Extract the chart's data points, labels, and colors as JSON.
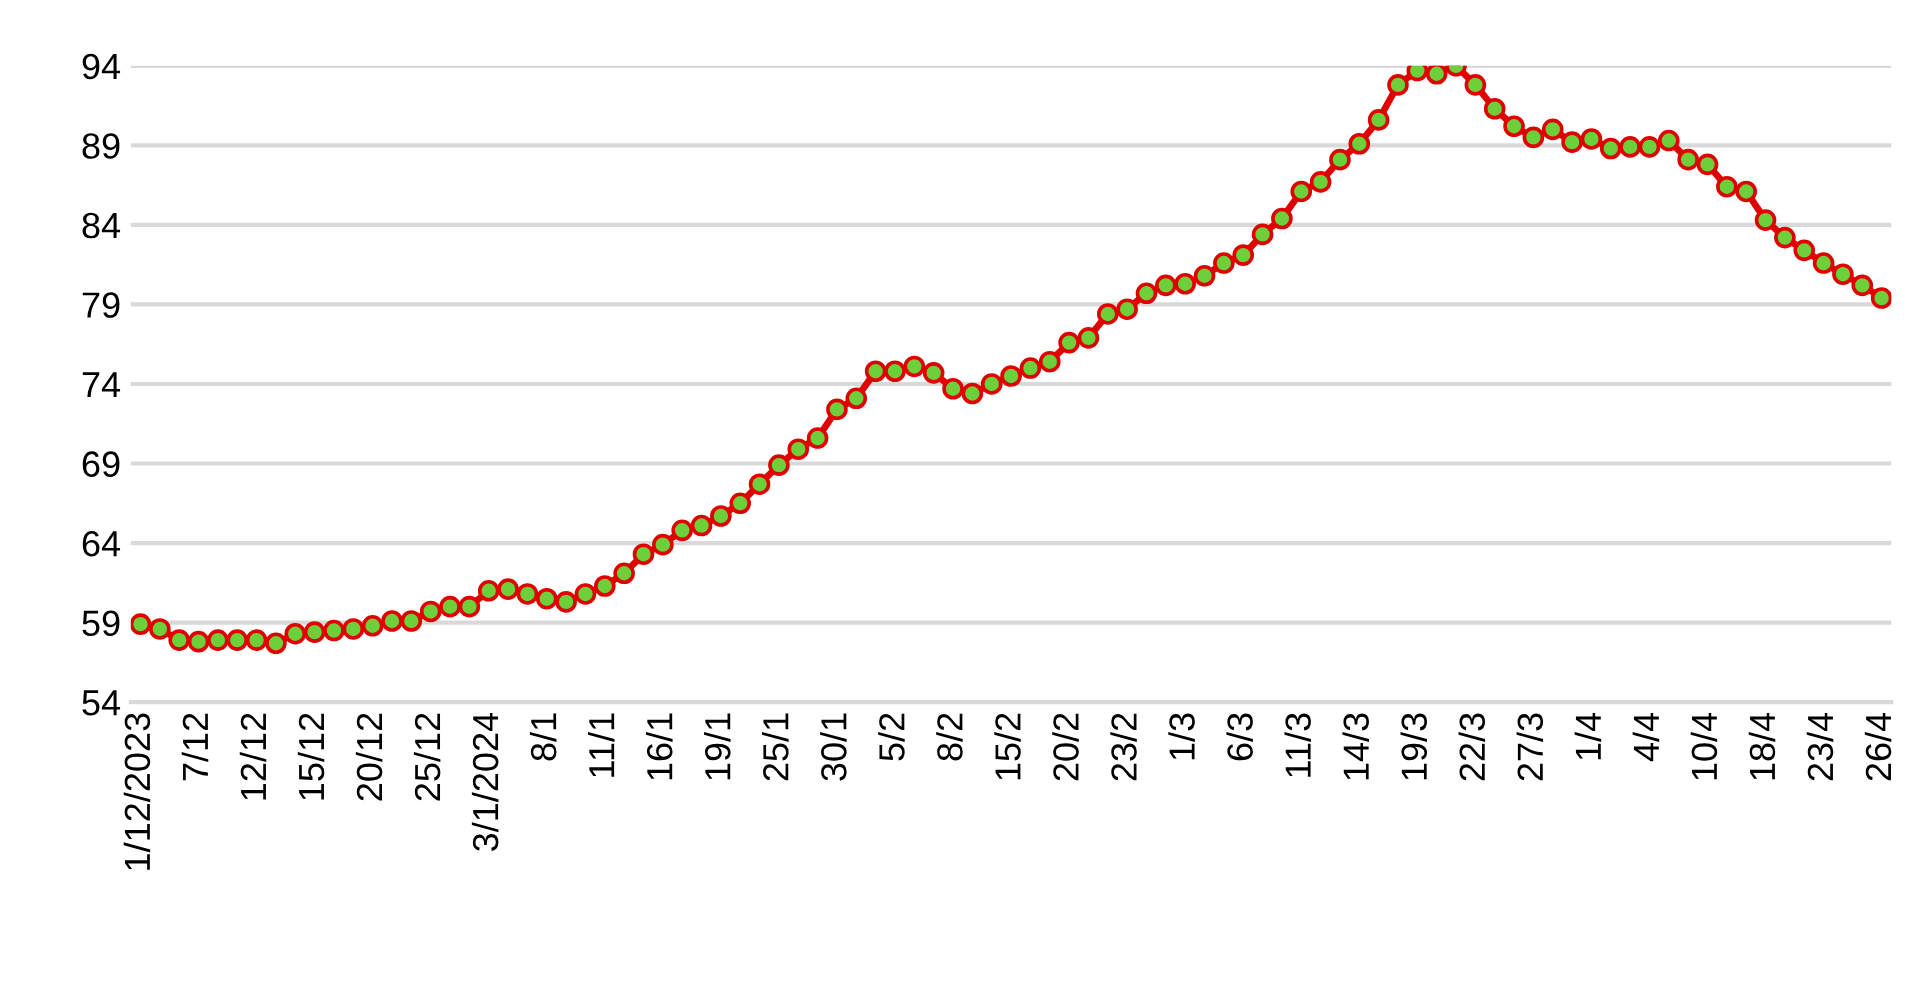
{
  "chart_data": {
    "type": "line",
    "categories": [
      "1/12/2023",
      null,
      null,
      "7/12",
      null,
      null,
      "12/12",
      null,
      null,
      "15/12",
      null,
      null,
      "20/12",
      null,
      null,
      "25/12",
      null,
      null,
      "3/1/2024",
      null,
      null,
      "8/1",
      null,
      null,
      "11/1",
      null,
      null,
      "16/1",
      null,
      null,
      "19/1",
      null,
      null,
      "25/1",
      null,
      null,
      "30/1",
      null,
      null,
      "5/2",
      null,
      null,
      "8/2",
      null,
      null,
      "15/2",
      null,
      null,
      "20/2",
      null,
      null,
      "23/2",
      null,
      null,
      "1/3",
      null,
      null,
      "6/3",
      null,
      null,
      "11/3",
      null,
      null,
      "14/3",
      null,
      null,
      "19/3",
      null,
      null,
      "22/3",
      null,
      null,
      "27/3",
      null,
      null,
      "1/4",
      null,
      null,
      "4/4",
      null,
      null,
      "10/4",
      null,
      null,
      "18/4",
      null,
      null,
      "23/4",
      null,
      null,
      "26/4"
    ],
    "series": [
      {
        "color": "#e00000",
        "marker": "none",
        "values": [
          58.9,
          58.6,
          57.9,
          57.8,
          57.9,
          57.9,
          57.9,
          57.7,
          58.3,
          58.4,
          58.5,
          58.6,
          58.8,
          59.1,
          59.1,
          59.7,
          60.0,
          60.0,
          61.0,
          61.1,
          60.8,
          60.5,
          60.3,
          60.8,
          61.3,
          62.1,
          63.3,
          63.9,
          64.8,
          65.1,
          65.7,
          66.5,
          67.7,
          68.9,
          69.9,
          70.6,
          72.4,
          73.1,
          74.8,
          74.8,
          75.1,
          74.7,
          73.7,
          73.4,
          74.0,
          74.5,
          75.0,
          75.4,
          76.6,
          76.9,
          78.4,
          78.7,
          79.7,
          80.2,
          80.3,
          80.8,
          81.6,
          82.1,
          83.4,
          84.4,
          86.1,
          86.7,
          88.1,
          89.1,
          90.6,
          92.8,
          93.7,
          93.5,
          94.0,
          92.8,
          91.3,
          90.2,
          89.5,
          90.0,
          89.2,
          89.4,
          88.8,
          88.9,
          88.9,
          89.3,
          88.1,
          87.8,
          86.4,
          86.1,
          84.3,
          83.2,
          82.4,
          81.6,
          80.9,
          80.2,
          79.4
        ]
      },
      {
        "type": "scatter",
        "color": "#6dcf3a",
        "marker": "circle",
        "values": [
          58.9,
          58.6,
          57.9,
          57.8,
          57.9,
          57.9,
          57.9,
          57.7,
          58.3,
          58.4,
          58.5,
          58.6,
          58.8,
          59.1,
          59.1,
          59.7,
          60.0,
          60.0,
          61.0,
          61.1,
          60.8,
          60.5,
          60.3,
          60.8,
          61.3,
          62.1,
          63.3,
          63.9,
          64.8,
          65.1,
          65.7,
          66.5,
          67.7,
          68.9,
          69.9,
          70.6,
          72.4,
          73.1,
          74.8,
          74.8,
          75.1,
          74.7,
          73.7,
          73.4,
          74.0,
          74.5,
          75.0,
          75.4,
          76.6,
          76.9,
          78.4,
          78.7,
          79.7,
          80.2,
          80.3,
          80.8,
          81.6,
          82.1,
          83.4,
          84.4,
          86.1,
          86.7,
          88.1,
          89.1,
          90.6,
          92.8,
          93.7,
          93.5,
          94.0,
          92.8,
          91.3,
          90.2,
          89.5,
          90.0,
          89.2,
          89.4,
          88.8,
          88.9,
          88.9,
          89.3,
          88.1,
          87.8,
          86.4,
          86.1,
          84.3,
          83.2,
          82.4,
          81.6,
          80.9,
          80.2,
          79.4
        ]
      }
    ],
    "ylim": [
      54,
      94
    ],
    "yticks": [
      54,
      59,
      64,
      69,
      74,
      79,
      84,
      89,
      94
    ],
    "grid": "y",
    "line_style": "solid"
  }
}
